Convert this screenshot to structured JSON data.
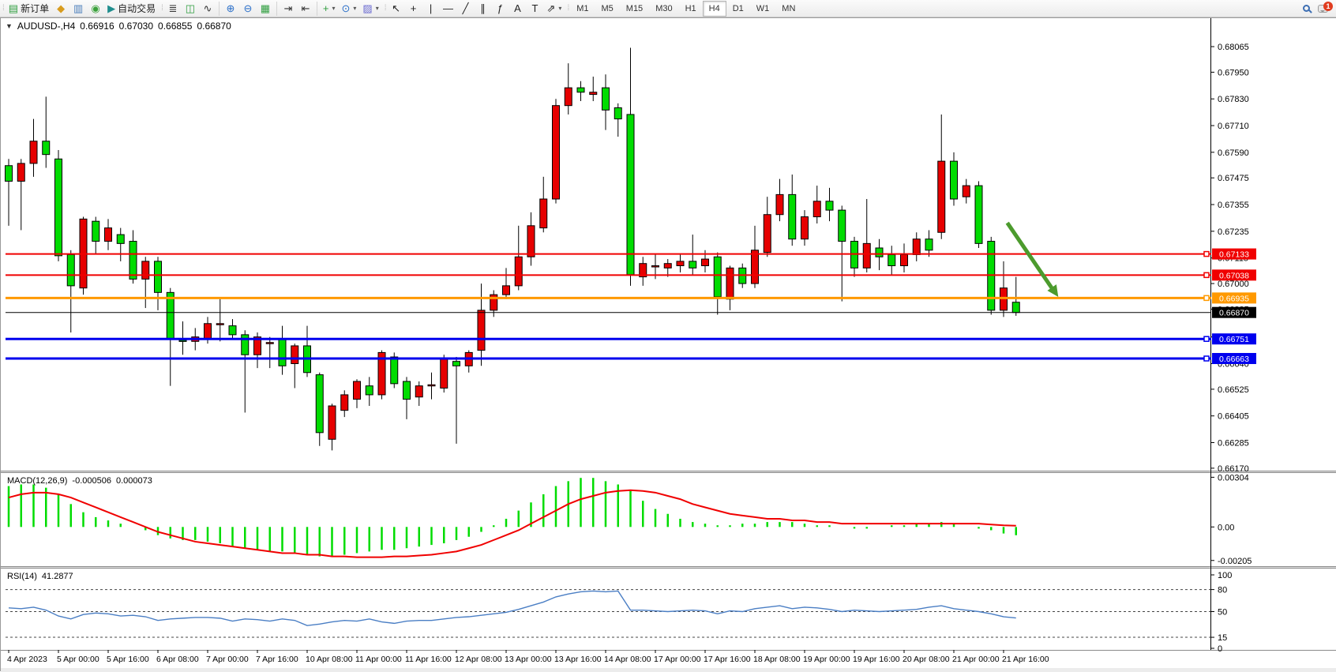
{
  "toolbar": {
    "left_buttons": [
      {
        "name": "new-order-button",
        "icon": "new-order-icon",
        "glyph": "▤",
        "color": "#2f9e3f",
        "label": "新订单"
      },
      {
        "name": "marketwatch-button",
        "icon": "marketwatch-icon",
        "glyph": "◆",
        "color": "#d89c1e",
        "label": ""
      },
      {
        "name": "navigator-button",
        "icon": "navigator-icon",
        "glyph": "▥",
        "color": "#4a7ebb",
        "label": ""
      },
      {
        "name": "signals-button",
        "icon": "signals-icon",
        "glyph": "◉",
        "color": "#3aa13a",
        "label": ""
      },
      {
        "name": "autotrading-button",
        "icon": "autotrading-icon",
        "glyph": "▶",
        "color": "#1f8e8e",
        "label": "自动交易"
      }
    ],
    "chart_type_buttons": [
      {
        "name": "bar-chart-button",
        "icon": "bar-chart-icon",
        "glyph": "≣",
        "color": "#333333"
      },
      {
        "name": "candlestick-chart-button",
        "icon": "candlestick-icon",
        "glyph": "◫",
        "color": "#2f9e3f"
      },
      {
        "name": "line-chart-button",
        "icon": "line-chart-icon",
        "glyph": "∿",
        "color": "#333333"
      }
    ],
    "zoom_buttons": [
      {
        "name": "zoom-in-button",
        "icon": "zoom-in-icon",
        "glyph": "⊕",
        "color": "#2a6fc9"
      },
      {
        "name": "zoom-out-button",
        "icon": "zoom-out-icon",
        "glyph": "⊖",
        "color": "#2a6fc9"
      },
      {
        "name": "tile-windows-button",
        "icon": "tile-windows-icon",
        "glyph": "▦",
        "color": "#2f9e3f"
      }
    ],
    "scroll_buttons": [
      {
        "name": "auto-scroll-button",
        "icon": "auto-scroll-icon",
        "glyph": "⇥",
        "color": "#333333"
      },
      {
        "name": "chart-shift-button",
        "icon": "chart-shift-icon",
        "glyph": "⇤",
        "color": "#333333"
      }
    ],
    "insert_buttons": [
      {
        "name": "indicators-button",
        "icon": "indicators-icon",
        "glyph": "+",
        "color": "#2f9e3f",
        "caret": "▾"
      },
      {
        "name": "periods-button",
        "icon": "periods-icon",
        "glyph": "⊙",
        "color": "#2a6fc9",
        "caret": "▾"
      },
      {
        "name": "templates-button",
        "icon": "templates-icon",
        "glyph": "▨",
        "color": "#6a6ad1",
        "caret": "▾"
      }
    ],
    "draw_buttons": [
      {
        "name": "cursor-button",
        "icon": "cursor-icon",
        "glyph": "↖",
        "color": "#222222"
      },
      {
        "name": "crosshair-button",
        "icon": "crosshair-icon",
        "glyph": "+",
        "color": "#222222"
      },
      {
        "name": "vertical-line-button",
        "icon": "vertical-line-icon",
        "glyph": "|",
        "color": "#222222"
      },
      {
        "name": "horizontal-line-button",
        "icon": "horizontal-line-icon",
        "glyph": "―",
        "color": "#222222"
      },
      {
        "name": "trendline-button",
        "icon": "trendline-icon",
        "glyph": "╱",
        "color": "#222222"
      },
      {
        "name": "channel-button",
        "icon": "equidistant-channel-icon",
        "glyph": "∥",
        "color": "#222222"
      },
      {
        "name": "fibonacci-button",
        "icon": "fibonacci-icon",
        "glyph": "ƒ",
        "color": "#222222"
      },
      {
        "name": "text-button",
        "icon": "text-icon",
        "glyph": "A",
        "color": "#222222"
      },
      {
        "name": "text-label-button",
        "icon": "text-label-icon",
        "glyph": "T",
        "color": "#222222"
      },
      {
        "name": "arrows-button",
        "icon": "arrow-objects-icon",
        "glyph": "⇗",
        "color": "#222222",
        "caret": "▾"
      }
    ],
    "timeframes": [
      "M1",
      "M5",
      "M15",
      "M30",
      "H1",
      "H4",
      "D1",
      "W1",
      "MN"
    ],
    "active_timeframe": "H4",
    "notification_count": "1"
  },
  "chart_header": {
    "symbol_period": "AUDUSD-,H4",
    "open": "0.66916",
    "high": "0.67030",
    "low": "0.66855",
    "close": "0.66870"
  },
  "chart_data": {
    "type": "candlestick",
    "symbol": "AUDUSD-",
    "period": "H4",
    "bull_color": "#e60000",
    "bear_color": "#00dc00",
    "outline_color": "#000000",
    "price_ylim": [
      0.66159,
      0.68129
    ],
    "price_axis_ticks": [
      0.68065,
      0.6795,
      0.6783,
      0.6771,
      0.6759,
      0.67475,
      0.67355,
      0.67235,
      0.67115,
      0.67,
      0.66885,
      0.6676,
      0.6664,
      0.66525,
      0.66405,
      0.66285,
      0.6617
    ],
    "x_labels": [
      "4 Apr 2023",
      "5 Apr 00:00",
      "5 Apr 16:00",
      "6 Apr 08:00",
      "7 Apr 00:00",
      "7 Apr 16:00",
      "10 Apr 08:00",
      "11 Apr 00:00",
      "11 Apr 16:00",
      "12 Apr 08:00",
      "13 Apr 00:00",
      "13 Apr 16:00",
      "14 Apr 08:00",
      "17 Apr 00:00",
      "17 Apr 16:00",
      "18 Apr 08:00",
      "19 Apr 00:00",
      "19 Apr 16:00",
      "20 Apr 08:00",
      "21 Apr 00:00",
      "21 Apr 16:00"
    ],
    "x_label_every_bars": 4,
    "candles": [
      [
        0.6753,
        0.6756,
        0.6726,
        0.6746
      ],
      [
        0.6746,
        0.6756,
        0.6724,
        0.6754
      ],
      [
        0.6754,
        0.6774,
        0.6748,
        0.6764
      ],
      [
        0.6764,
        0.6784,
        0.6752,
        0.6758
      ],
      [
        0.6756,
        0.676,
        0.671,
        0.67125
      ],
      [
        0.6713,
        0.6715,
        0.6678,
        0.6699
      ],
      [
        0.6698,
        0.673,
        0.6695,
        0.6729
      ],
      [
        0.6728,
        0.673,
        0.6713,
        0.6719
      ],
      [
        0.6719,
        0.6729,
        0.6715,
        0.6725
      ],
      [
        0.6722,
        0.6725,
        0.671,
        0.6718
      ],
      [
        0.6719,
        0.6724,
        0.67,
        0.6702
      ],
      [
        0.6702,
        0.6712,
        0.6689,
        0.671
      ],
      [
        0.671,
        0.6712,
        0.6688,
        0.6696
      ],
      [
        0.6696,
        0.6698,
        0.6654,
        0.6675
      ],
      [
        0.66745,
        0.6683,
        0.6668,
        0.6674
      ],
      [
        0.6674,
        0.668,
        0.667,
        0.6676
      ],
      [
        0.6675,
        0.6685,
        0.6673,
        0.6682
      ],
      [
        0.6682,
        0.6693,
        0.6674,
        0.6682
      ],
      [
        0.6681,
        0.6684,
        0.6675,
        0.6677
      ],
      [
        0.6677,
        0.6679,
        0.6642,
        0.6668
      ],
      [
        0.6668,
        0.6678,
        0.6662,
        0.6676
      ],
      [
        0.6673,
        0.6676,
        0.6662,
        0.66735
      ],
      [
        0.6675,
        0.6681,
        0.6659,
        0.6663
      ],
      [
        0.6664,
        0.6673,
        0.6653,
        0.6672
      ],
      [
        0.6672,
        0.6681,
        0.6658,
        0.666
      ],
      [
        0.6659,
        0.666,
        0.6627,
        0.6633
      ],
      [
        0.663,
        0.6646,
        0.6625,
        0.6645
      ],
      [
        0.6643,
        0.6652,
        0.664,
        0.665
      ],
      [
        0.6648,
        0.6657,
        0.6644,
        0.6656
      ],
      [
        0.6654,
        0.6658,
        0.6645,
        0.665
      ],
      [
        0.665,
        0.667,
        0.6648,
        0.6669
      ],
      [
        0.6667,
        0.6669,
        0.6653,
        0.6655
      ],
      [
        0.6656,
        0.6658,
        0.6639,
        0.6648
      ],
      [
        0.6649,
        0.6656,
        0.6645,
        0.6654
      ],
      [
        0.6654,
        0.666,
        0.6648,
        0.66545
      ],
      [
        0.6653,
        0.6668,
        0.6651,
        0.6666
      ],
      [
        0.6665,
        0.6667,
        0.6628,
        0.6663
      ],
      [
        0.6663,
        0.667,
        0.666,
        0.6669
      ],
      [
        0.667,
        0.67,
        0.6663,
        0.6688
      ],
      [
        0.6688,
        0.6697,
        0.6685,
        0.6695
      ],
      [
        0.6695,
        0.6707,
        0.6693,
        0.6699
      ],
      [
        0.6699,
        0.6726,
        0.6697,
        0.6712
      ],
      [
        0.6712,
        0.6732,
        0.6708,
        0.6726
      ],
      [
        0.6725,
        0.6748,
        0.6723,
        0.6738
      ],
      [
        0.6738,
        0.6783,
        0.6736,
        0.678
      ],
      [
        0.678,
        0.6799,
        0.6776,
        0.6788
      ],
      [
        0.6788,
        0.6791,
        0.6782,
        0.6786
      ],
      [
        0.6785,
        0.6793,
        0.6782,
        0.6786
      ],
      [
        0.6788,
        0.6794,
        0.6769,
        0.6778
      ],
      [
        0.6779,
        0.6781,
        0.6766,
        0.6774
      ],
      [
        0.6776,
        0.6806,
        0.6699,
        0.6704
      ],
      [
        0.6703,
        0.6712,
        0.6699,
        0.6709
      ],
      [
        0.6708,
        0.6713,
        0.6702,
        0.6708
      ],
      [
        0.6707,
        0.6711,
        0.6703,
        0.6709
      ],
      [
        0.6708,
        0.6713,
        0.6705,
        0.671
      ],
      [
        0.671,
        0.6722,
        0.6704,
        0.6707
      ],
      [
        0.6708,
        0.6715,
        0.6705,
        0.6711
      ],
      [
        0.6712,
        0.6714,
        0.6686,
        0.6694
      ],
      [
        0.6693,
        0.6708,
        0.6688,
        0.6707
      ],
      [
        0.6707,
        0.6709,
        0.6698,
        0.67
      ],
      [
        0.67,
        0.6726,
        0.6698,
        0.6715
      ],
      [
        0.6714,
        0.6739,
        0.6712,
        0.6731
      ],
      [
        0.6731,
        0.6747,
        0.6728,
        0.674
      ],
      [
        0.674,
        0.6749,
        0.6717,
        0.672
      ],
      [
        0.672,
        0.6733,
        0.6717,
        0.673
      ],
      [
        0.673,
        0.6744,
        0.6727,
        0.6737
      ],
      [
        0.6737,
        0.6743,
        0.6728,
        0.6733
      ],
      [
        0.6733,
        0.6735,
        0.6692,
        0.6719
      ],
      [
        0.6719,
        0.6721,
        0.6703,
        0.6707
      ],
      [
        0.6707,
        0.6738,
        0.6705,
        0.6718
      ],
      [
        0.6716,
        0.672,
        0.6706,
        0.6712
      ],
      [
        0.6713,
        0.6717,
        0.6704,
        0.6708
      ],
      [
        0.6708,
        0.6718,
        0.6705,
        0.6713
      ],
      [
        0.6713,
        0.6723,
        0.671,
        0.672
      ],
      [
        0.672,
        0.6724,
        0.6712,
        0.6715
      ],
      [
        0.6723,
        0.6776,
        0.672,
        0.6755
      ],
      [
        0.6755,
        0.6759,
        0.6735,
        0.6738
      ],
      [
        0.6739,
        0.6747,
        0.6736,
        0.6744
      ],
      [
        0.6744,
        0.6746,
        0.6716,
        0.6718
      ],
      [
        0.6719,
        0.6721,
        0.6686,
        0.6688
      ],
      [
        0.6688,
        0.671,
        0.6685,
        0.6698
      ],
      [
        0.66916,
        0.6703,
        0.66855,
        0.6687
      ]
    ],
    "hlines": [
      {
        "price": 0.67133,
        "color": "#f00000",
        "width": 2,
        "badge": "0.67133",
        "marker": true
      },
      {
        "price": 0.67038,
        "color": "#f00000",
        "width": 2,
        "badge": "0.67038",
        "marker": true
      },
      {
        "price": 0.66935,
        "color": "#ff9900",
        "width": 3,
        "badge": "0.66935",
        "marker": true
      },
      {
        "price": 0.6687,
        "color": "#000000",
        "width": 1,
        "badge": "0.66870",
        "marker": false
      },
      {
        "price": 0.66751,
        "color": "#0000ee",
        "width": 3,
        "badge": "0.66751",
        "marker": true
      },
      {
        "price": 0.66663,
        "color": "#0000ee",
        "width": 3,
        "badge": "0.66663",
        "marker": true
      }
    ],
    "arrow": {
      "from_bar": 80.3,
      "from_price": 0.67273,
      "to_bar": 84.4,
      "to_price": 0.6694,
      "color": "#4c9b2d",
      "width": 5
    },
    "macd": {
      "label": "MACD(12,26,9)",
      "value_text": "-0.000506",
      "signal_text": "0.000073",
      "ylim": [
        -0.0024,
        0.0033
      ],
      "axis_ticks": [
        "0.00304",
        "0.00",
        "-0.00205"
      ],
      "axis_tick_values": [
        0.00304,
        0.0,
        -0.00205
      ],
      "hist_color": "#00dc00",
      "signal_color": "#f00000",
      "histogram": [
        0.0025,
        0.0026,
        0.0026,
        0.0024,
        0.002,
        0.0014,
        0.0009,
        0.0006,
        0.0004,
        0.0002,
        0.0,
        -0.0002,
        -0.0005,
        -0.0007,
        -0.0008,
        -0.0008,
        -0.0009,
        -0.001,
        -0.0012,
        -0.0013,
        -0.0014,
        -0.0015,
        -0.0015,
        -0.0016,
        -0.0017,
        -0.0018,
        -0.0018,
        -0.0017,
        -0.0016,
        -0.0015,
        -0.0014,
        -0.0014,
        -0.0013,
        -0.0012,
        -0.0011,
        -0.001,
        -0.0008,
        -0.0006,
        -0.0003,
        0.0001,
        0.0005,
        0.001,
        0.0015,
        0.002,
        0.0025,
        0.0028,
        0.003,
        0.003,
        0.0028,
        0.0026,
        0.0022,
        0.0016,
        0.0011,
        0.0008,
        0.0005,
        0.0003,
        0.0002,
        0.0001,
        0.0001,
        0.0002,
        0.0002,
        0.0003,
        0.0003,
        0.0003,
        0.0002,
        0.0001,
        0.0001,
        0.0,
        -0.0001,
        -0.0001,
        0.0,
        0.0001,
        0.0001,
        0.0002,
        0.0002,
        0.0003,
        0.0002,
        0.0,
        -0.0001,
        -0.0002,
        -0.0004,
        -0.000506
      ],
      "signal": [
        0.0018,
        0.002,
        0.0021,
        0.0021,
        0.002,
        0.0018,
        0.0015,
        0.0012,
        0.0009,
        0.0006,
        0.0003,
        0.0,
        -0.0003,
        -0.0005,
        -0.0007,
        -0.0009,
        -0.001,
        -0.0011,
        -0.0012,
        -0.0013,
        -0.0014,
        -0.0015,
        -0.0016,
        -0.0016,
        -0.0017,
        -0.0017,
        -0.0018,
        -0.0018,
        -0.00185,
        -0.00185,
        -0.00185,
        -0.0018,
        -0.0018,
        -0.00175,
        -0.0017,
        -0.0016,
        -0.0015,
        -0.0013,
        -0.0011,
        -0.0008,
        -0.0005,
        -0.0002,
        0.0002,
        0.0006,
        0.001,
        0.0014,
        0.0017,
        0.0019,
        0.0021,
        0.0022,
        0.00225,
        0.0022,
        0.0021,
        0.0019,
        0.0017,
        0.0014,
        0.0012,
        0.001,
        0.0008,
        0.0007,
        0.0006,
        0.0005,
        0.0005,
        0.0004,
        0.0004,
        0.0003,
        0.0003,
        0.0002,
        0.0002,
        0.0002,
        0.0002,
        0.0002,
        0.0002,
        0.0002,
        0.0002,
        0.0002,
        0.0002,
        0.0002,
        0.0002,
        0.00015,
        0.0001,
        7.3e-05
      ]
    },
    "rsi": {
      "label": "RSI(14)",
      "value_text": "41.2877",
      "ylim": [
        0,
        100
      ],
      "axis_ticks": [
        100,
        80,
        50,
        15,
        0
      ],
      "levels": [
        80,
        50,
        15
      ],
      "line_color": "#4a7ec4",
      "series": [
        55,
        54,
        56,
        52,
        44,
        40,
        46,
        48,
        47,
        44,
        45,
        43,
        38,
        40,
        41,
        42,
        42,
        41,
        37,
        40,
        39,
        37,
        40,
        38,
        31,
        33,
        36,
        38,
        37,
        40,
        36,
        34,
        37,
        38,
        38,
        40,
        42,
        43,
        45,
        47,
        49,
        53,
        58,
        63,
        70,
        74,
        77,
        78,
        77,
        78,
        52,
        52,
        51,
        50,
        51,
        52,
        51,
        47,
        51,
        50,
        54,
        56,
        58,
        54,
        56,
        55,
        53,
        50,
        52,
        51,
        50,
        51,
        52,
        53,
        56,
        58,
        54,
        52,
        50,
        47,
        43,
        41.29
      ]
    }
  }
}
